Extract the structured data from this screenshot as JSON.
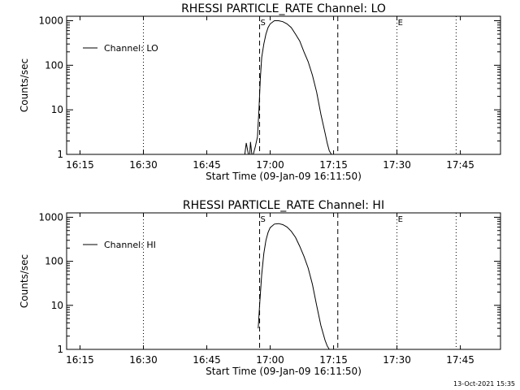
{
  "footer": {
    "timestamp": "13-Oct-2021 15:35"
  },
  "chart_data": [
    {
      "type": "line",
      "title": "RHESSI PARTICLE_RATE Channel: LO",
      "xlabel": "Start Time (09-Jan-09 16:11:50)",
      "ylabel": "Counts/sec",
      "yscale": "log",
      "xlim": [
        "16:11:50",
        "17:54:30"
      ],
      "ylim": [
        1,
        1000
      ],
      "x_ticks": [
        "16:15",
        "16:30",
        "16:45",
        "17:00",
        "17:15",
        "17:30",
        "17:45"
      ],
      "y_ticks": [
        "1",
        "10",
        "100",
        "1000"
      ],
      "legend": {
        "position": "top-left",
        "entries": [
          "Channel: LO"
        ]
      },
      "markers": [
        {
          "label": "S",
          "time": "16:57:30",
          "style": "dashed"
        },
        {
          "label": "",
          "time": "17:16:00",
          "style": "dashed"
        },
        {
          "label": "E",
          "time": "17:30:00",
          "style": "dotted"
        },
        {
          "label": "",
          "time": "16:30:00",
          "style": "dotted"
        },
        {
          "label": "",
          "time": "17:44:00",
          "style": "dotted"
        }
      ],
      "series": [
        {
          "name": "Channel: LO",
          "x": [
            "16:54:00",
            "16:54:20",
            "16:54:50",
            "16:55:10",
            "16:55:20",
            "16:55:40",
            "16:56:00",
            "16:56:30",
            "16:57:00",
            "16:57:20",
            "16:57:40",
            "16:58:00",
            "16:58:30",
            "16:59:00",
            "16:59:30",
            "17:00:00",
            "17:01:00",
            "17:02:00",
            "17:03:00",
            "17:04:00",
            "17:05:00",
            "17:06:00",
            "17:07:00",
            "17:08:00",
            "17:09:00",
            "17:10:00",
            "17:11:00",
            "17:12:00",
            "17:13:00",
            "17:13:30",
            "17:14:00",
            "17:14:30",
            "17:15:00"
          ],
          "y": [
            1,
            1.8,
            1,
            1,
            1.9,
            1,
            1,
            1.5,
            2.5,
            10,
            50,
            150,
            300,
            500,
            700,
            850,
            1000,
            1000,
            950,
            850,
            700,
            500,
            350,
            200,
            120,
            60,
            25,
            8,
            3,
            1.8,
            1.2,
            1,
            1
          ]
        }
      ]
    },
    {
      "type": "line",
      "title": "RHESSI PARTICLE_RATE Channel: HI",
      "xlabel": "Start Time (09-Jan-09 16:11:50)",
      "ylabel": "Counts/sec",
      "yscale": "log",
      "xlim": [
        "16:11:50",
        "17:54:30"
      ],
      "ylim": [
        1,
        1000
      ],
      "x_ticks": [
        "16:15",
        "16:30",
        "16:45",
        "17:00",
        "17:15",
        "17:30",
        "17:45"
      ],
      "y_ticks": [
        "1",
        "10",
        "100",
        "1000"
      ],
      "legend": {
        "position": "top-left",
        "entries": [
          "Channel: HI"
        ]
      },
      "markers": [
        {
          "label": "S",
          "time": "16:57:30",
          "style": "dashed"
        },
        {
          "label": "",
          "time": "17:16:00",
          "style": "dashed"
        },
        {
          "label": "E",
          "time": "17:30:00",
          "style": "dotted"
        },
        {
          "label": "",
          "time": "16:30:00",
          "style": "dotted"
        },
        {
          "label": "",
          "time": "17:44:00",
          "style": "dotted"
        }
      ],
      "series": [
        {
          "name": "Channel: HI",
          "x": [
            "16:57:10",
            "16:57:30",
            "16:58:00",
            "16:58:30",
            "16:59:00",
            "16:59:30",
            "17:00:00",
            "17:01:00",
            "17:02:00",
            "17:03:00",
            "17:04:00",
            "17:05:00",
            "17:06:00",
            "17:07:00",
            "17:08:00",
            "17:09:00",
            "17:10:00",
            "17:11:00",
            "17:12:00",
            "17:13:00",
            "17:13:30",
            "17:14:00"
          ],
          "y": [
            3,
            10,
            50,
            150,
            300,
            450,
            580,
            700,
            720,
            680,
            600,
            480,
            350,
            220,
            130,
            70,
            30,
            10,
            3.5,
            1.6,
            1.2,
            1
          ]
        }
      ]
    }
  ]
}
